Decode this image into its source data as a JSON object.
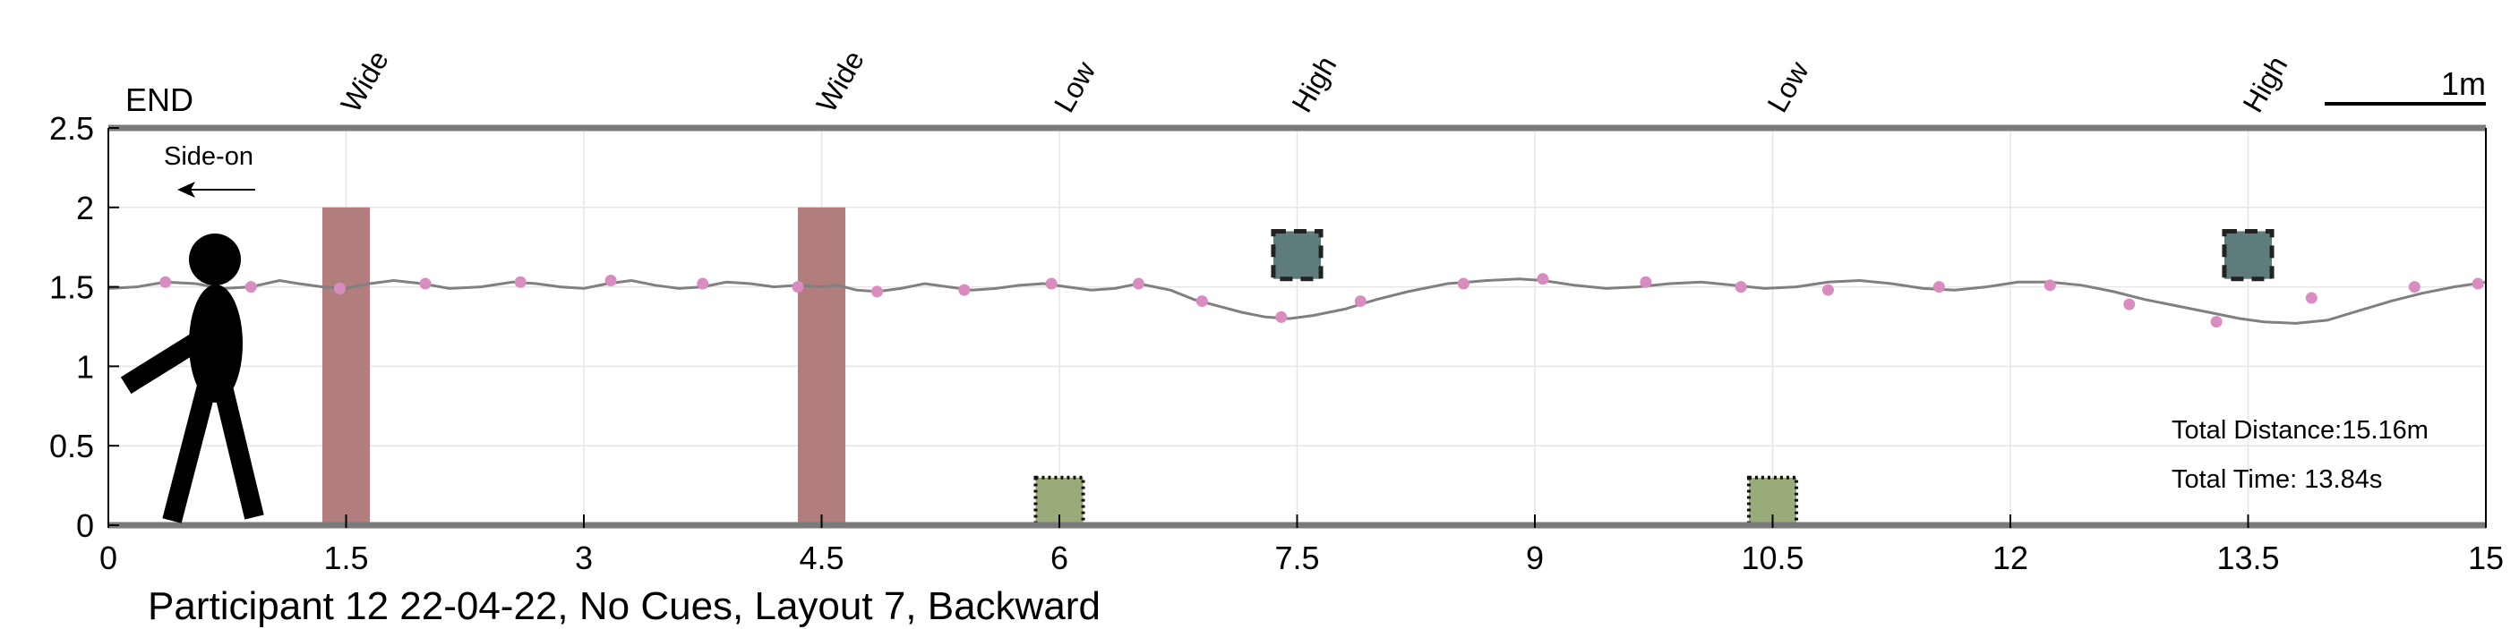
{
  "chart_data": {
    "type": "line",
    "xlim": [
      0,
      15
    ],
    "ylim": [
      0,
      2.5
    ],
    "x_ticks": [
      0,
      1.5,
      3,
      4.5,
      6,
      7.5,
      9,
      10.5,
      12,
      13.5,
      15
    ],
    "x_tick_labels": [
      "0",
      "1.5",
      "3",
      "4.5",
      "6",
      "7.5",
      "9",
      "10.5",
      "12",
      "13.5",
      "15"
    ],
    "y_ticks": [
      0,
      0.5,
      1,
      1.5,
      2,
      2.5
    ],
    "y_tick_labels": [
      "0",
      "0.5",
      "1",
      "1.5",
      "2",
      "2.5"
    ],
    "grid": true,
    "end_label": "END",
    "scale_bar_label": "1m",
    "direction_label": "Side-on",
    "caption": "Participant 12 22-04-22, No Cues, Layout 7, Backward",
    "total_distance_label": "Total Distance:15.16m",
    "total_time_label": "Total Time: 13.84s",
    "obstacles": [
      {
        "label": "Wide",
        "type": "wide",
        "x_center": 1.5,
        "width": 0.3,
        "y_bottom": 0,
        "y_top": 2.0,
        "color": "#b27d7d"
      },
      {
        "label": "Wide",
        "type": "wide",
        "x_center": 4.5,
        "width": 0.3,
        "y_bottom": 0,
        "y_top": 2.0,
        "color": "#b27d7d"
      },
      {
        "label": "Low",
        "type": "low",
        "x_center": 6.0,
        "width": 0.3,
        "y_bottom": 0,
        "y_top": 0.3,
        "color": "#9aab7a"
      },
      {
        "label": "High",
        "type": "high",
        "x_center": 7.5,
        "width": 0.3,
        "y_bottom": 1.55,
        "y_top": 1.85,
        "color": "#5f7c7d"
      },
      {
        "label": "Low",
        "type": "low",
        "x_center": 10.5,
        "width": 0.3,
        "y_bottom": 0,
        "y_top": 0.3,
        "color": "#9aab7a"
      },
      {
        "label": "High",
        "type": "high",
        "x_center": 13.5,
        "width": 0.3,
        "y_bottom": 1.55,
        "y_top": 1.85,
        "color": "#5f7c7d"
      }
    ],
    "series": [
      {
        "line_color": "#808080",
        "marker_color": "#d98cc0",
        "x": [
          0,
          0.18,
          0.36,
          0.55,
          0.72,
          0.9,
          1.08,
          1.2,
          1.35,
          1.5,
          1.65,
          1.8,
          1.98,
          2.15,
          2.35,
          2.55,
          2.7,
          2.85,
          3.0,
          3.15,
          3.3,
          3.45,
          3.6,
          3.75,
          3.9,
          4.05,
          4.2,
          4.35,
          4.5,
          4.6,
          4.72,
          4.85,
          5.0,
          5.15,
          5.3,
          5.45,
          5.6,
          5.75,
          5.9,
          6.05,
          6.2,
          6.35,
          6.5,
          6.7,
          6.85,
          7.0,
          7.15,
          7.3,
          7.45,
          7.6,
          7.8,
          8.0,
          8.2,
          8.45,
          8.7,
          8.9,
          9.05,
          9.25,
          9.45,
          9.65,
          9.85,
          10.05,
          10.25,
          10.45,
          10.65,
          10.85,
          11.05,
          11.25,
          11.45,
          11.65,
          11.85,
          12.05,
          12.25,
          12.45,
          12.65,
          12.85,
          13.05,
          13.25,
          13.45,
          13.6,
          13.8,
          14.0,
          14.2,
          14.4,
          14.6,
          14.8,
          15.0
        ],
        "y": [
          1.49,
          1.5,
          1.53,
          1.52,
          1.49,
          1.5,
          1.54,
          1.52,
          1.5,
          1.49,
          1.52,
          1.54,
          1.52,
          1.49,
          1.5,
          1.53,
          1.52,
          1.5,
          1.49,
          1.52,
          1.54,
          1.51,
          1.49,
          1.5,
          1.53,
          1.52,
          1.5,
          1.51,
          1.5,
          1.51,
          1.48,
          1.47,
          1.49,
          1.52,
          1.5,
          1.48,
          1.49,
          1.51,
          1.52,
          1.5,
          1.48,
          1.49,
          1.52,
          1.48,
          1.42,
          1.38,
          1.34,
          1.31,
          1.3,
          1.32,
          1.36,
          1.42,
          1.47,
          1.52,
          1.54,
          1.55,
          1.54,
          1.51,
          1.49,
          1.5,
          1.52,
          1.53,
          1.51,
          1.49,
          1.5,
          1.53,
          1.54,
          1.52,
          1.49,
          1.48,
          1.5,
          1.53,
          1.53,
          1.51,
          1.47,
          1.42,
          1.38,
          1.34,
          1.3,
          1.28,
          1.27,
          1.29,
          1.35,
          1.41,
          1.46,
          1.5,
          1.53
        ]
      }
    ],
    "markers_x": [
      0.36,
      0.9,
      1.46,
      2.0,
      2.6,
      3.17,
      3.75,
      4.35,
      4.85,
      5.4,
      5.95,
      6.5,
      6.9,
      7.4,
      7.9,
      8.55,
      9.05,
      9.7,
      10.3,
      10.85,
      11.55,
      12.25,
      12.75,
      13.3,
      13.9,
      14.55,
      14.95
    ],
    "markers_y": [
      1.53,
      1.5,
      1.49,
      1.52,
      1.53,
      1.54,
      1.52,
      1.5,
      1.47,
      1.48,
      1.52,
      1.52,
      1.41,
      1.31,
      1.41,
      1.52,
      1.55,
      1.53,
      1.5,
      1.48,
      1.5,
      1.51,
      1.39,
      1.28,
      1.43,
      1.5,
      1.52
    ]
  }
}
